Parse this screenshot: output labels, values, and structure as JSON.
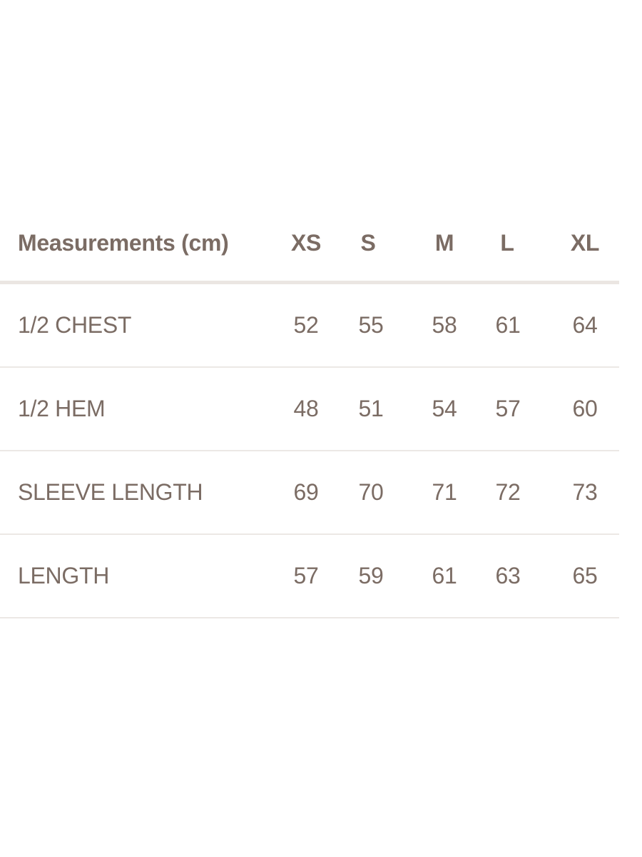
{
  "table": {
    "header": [
      "Measurements (cm)",
      "XS",
      "S",
      "M",
      "L",
      "XL"
    ],
    "rows": [
      [
        "1/2 CHEST",
        "52",
        "55",
        "58",
        "61",
        "64"
      ],
      [
        "1/2 HEM",
        "48",
        "51",
        "54",
        "57",
        "60"
      ],
      [
        "SLEEVE LENGTH",
        "69",
        "70",
        "71",
        "72",
        "73"
      ],
      [
        "LENGTH",
        "57",
        "59",
        "61",
        "63",
        "65"
      ]
    ]
  },
  "colors": {
    "text": "#7b6c64",
    "divider": "#ece8e5"
  }
}
